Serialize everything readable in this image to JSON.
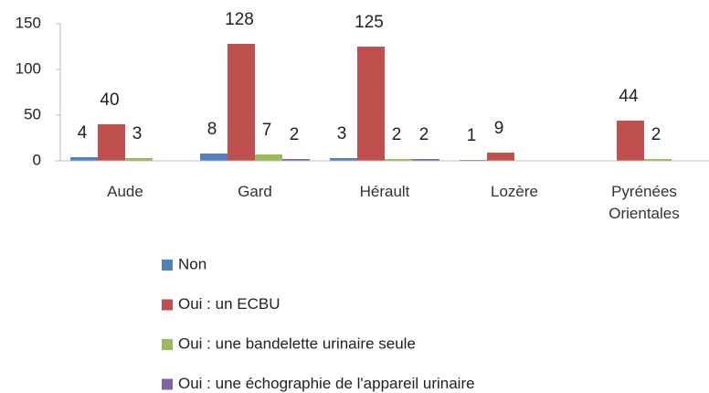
{
  "chart_data": {
    "type": "bar",
    "categories": [
      "Aude",
      "Gard",
      "Hérault",
      "Lozère",
      "Pyrénées Orientales"
    ],
    "series": [
      {
        "name": "Non",
        "color": "#4f81bd",
        "values": [
          4,
          8,
          3,
          1,
          null
        ]
      },
      {
        "name": "Oui : un ECBU",
        "color": "#c0504d",
        "values": [
          40,
          128,
          125,
          9,
          44
        ]
      },
      {
        "name": "Oui : une bandelette urinaire seule",
        "color": "#9bbb59",
        "values": [
          3,
          7,
          2,
          null,
          2
        ]
      },
      {
        "name": "Oui : une échographie de l'appareil urinaire",
        "color": "#8064a2",
        "values": [
          null,
          2,
          2,
          null,
          null
        ]
      }
    ],
    "ylim": [
      0,
      150
    ],
    "yticks": [
      0,
      50,
      100,
      150
    ],
    "grid": false,
    "legend": "bottom"
  }
}
